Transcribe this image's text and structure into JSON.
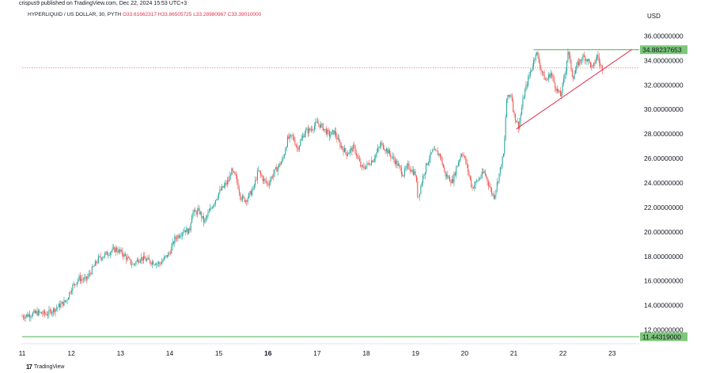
{
  "header": {
    "publisher": "crispus9 published on TradingView.com, Dec 22, 2024 15:53 UTC+3",
    "symbol": "HYPERLIQUID / US DOLLAR, 30, PYTH",
    "ohlc": {
      "o": "O33.61662317",
      "h": "H33.86505725",
      "l": "L33.28980967",
      "c": "C33.39010000"
    },
    "currency": "USD"
  },
  "footer": {
    "logo_text": "TradingView"
  },
  "colors": {
    "up": "#26a69a",
    "down": "#ef5350",
    "horizontal_line": "#4caf50",
    "label_bg": "#7cc77a",
    "trendline": "#e0314b",
    "last_price_line": "#e0314b",
    "axis_text": "#131722"
  },
  "chart_data": {
    "type": "candlestick",
    "title": "",
    "xlabel": "",
    "ylabel": "",
    "ylim": [
      11.0,
      37.0
    ],
    "xlim": [
      11.0,
      23.55
    ],
    "y_ticks": [
      "12.00000000",
      "14.00000000",
      "16.00000000",
      "18.00000000",
      "20.00000000",
      "22.00000000",
      "24.00000000",
      "26.00000000",
      "28.00000000",
      "30.00000000",
      "32.00000000",
      "34.00000000",
      "36.00000000"
    ],
    "x_ticks": [
      "11",
      "12",
      "13",
      "14",
      "15",
      "16",
      "17",
      "18",
      "19",
      "20",
      "21",
      "22",
      "23"
    ],
    "bold_x_ticks": [
      "16"
    ],
    "price_path": [
      [
        11.0,
        13.1
      ],
      [
        11.3,
        13.4
      ],
      [
        11.5,
        13.3
      ],
      [
        11.7,
        13.8
      ],
      [
        11.9,
        14.4
      ],
      [
        12.0,
        15.4
      ],
      [
        12.15,
        16.2
      ],
      [
        12.3,
        16.1
      ],
      [
        12.55,
        17.8
      ],
      [
        12.75,
        18.3
      ],
      [
        12.9,
        18.6
      ],
      [
        13.05,
        18.2
      ],
      [
        13.25,
        17.3
      ],
      [
        13.4,
        17.9
      ],
      [
        13.6,
        17.6
      ],
      [
        13.8,
        17.4
      ],
      [
        14.0,
        18.3
      ],
      [
        14.1,
        19.4
      ],
      [
        14.3,
        20.2
      ],
      [
        14.4,
        20.0
      ],
      [
        14.45,
        21.5
      ],
      [
        14.6,
        21.7
      ],
      [
        14.7,
        20.8
      ],
      [
        14.85,
        22.0
      ],
      [
        15.0,
        23.2
      ],
      [
        15.2,
        24.2
      ],
      [
        15.25,
        25.0
      ],
      [
        15.35,
        24.4
      ],
      [
        15.45,
        22.8
      ],
      [
        15.55,
        22.6
      ],
      [
        15.7,
        23.5
      ],
      [
        15.8,
        25.0
      ],
      [
        15.9,
        24.3
      ],
      [
        16.0,
        23.9
      ],
      [
        16.1,
        24.7
      ],
      [
        16.3,
        25.9
      ],
      [
        16.4,
        27.6
      ],
      [
        16.5,
        27.8
      ],
      [
        16.6,
        26.8
      ],
      [
        16.75,
        28.2
      ],
      [
        16.85,
        28.3
      ],
      [
        17.0,
        28.9
      ],
      [
        17.1,
        28.6
      ],
      [
        17.25,
        27.9
      ],
      [
        17.35,
        28.2
      ],
      [
        17.45,
        27.2
      ],
      [
        17.6,
        26.4
      ],
      [
        17.75,
        26.9
      ],
      [
        17.9,
        25.2
      ],
      [
        18.0,
        25.4
      ],
      [
        18.15,
        26.0
      ],
      [
        18.3,
        27.2
      ],
      [
        18.45,
        26.5
      ],
      [
        18.6,
        25.7
      ],
      [
        18.75,
        24.7
      ],
      [
        18.85,
        25.4
      ],
      [
        19.0,
        24.7
      ],
      [
        19.05,
        22.7
      ],
      [
        19.15,
        24.5
      ],
      [
        19.25,
        25.8
      ],
      [
        19.35,
        26.6
      ],
      [
        19.5,
        26.3
      ],
      [
        19.6,
        24.7
      ],
      [
        19.75,
        24.1
      ],
      [
        19.85,
        25.5
      ],
      [
        19.95,
        26.6
      ],
      [
        20.05,
        25.3
      ],
      [
        20.15,
        23.6
      ],
      [
        20.3,
        24.4
      ],
      [
        20.4,
        24.9
      ],
      [
        20.55,
        23.2
      ],
      [
        20.6,
        22.9
      ],
      [
        20.7,
        24.7
      ],
      [
        20.8,
        26.5
      ],
      [
        20.85,
        30.8
      ],
      [
        20.95,
        31.3
      ],
      [
        21.0,
        29.6
      ],
      [
        21.1,
        28.6
      ],
      [
        21.2,
        31.1
      ],
      [
        21.3,
        32.6
      ],
      [
        21.4,
        33.9
      ],
      [
        21.45,
        34.8
      ],
      [
        21.55,
        33.3
      ],
      [
        21.65,
        32.3
      ],
      [
        21.75,
        33.0
      ],
      [
        21.85,
        31.8
      ],
      [
        21.95,
        31.1
      ],
      [
        22.05,
        33.1
      ],
      [
        22.1,
        34.8
      ],
      [
        22.2,
        32.6
      ],
      [
        22.3,
        33.7
      ],
      [
        22.4,
        34.3
      ],
      [
        22.5,
        34.1
      ],
      [
        22.6,
        33.3
      ],
      [
        22.7,
        34.5
      ],
      [
        22.75,
        33.6
      ],
      [
        22.8,
        33.39
      ]
    ],
    "horizontal_lines": [
      {
        "price": 34.88237653,
        "label": "34.88237653",
        "x_start": 21.4
      },
      {
        "price": 11.44319,
        "label": "11.44319000",
        "x_start": 11.0
      }
    ],
    "trendline": {
      "from": [
        21.05,
        28.4
      ],
      "to": [
        23.4,
        34.9
      ]
    },
    "last_price": 33.3901,
    "grid": false
  }
}
